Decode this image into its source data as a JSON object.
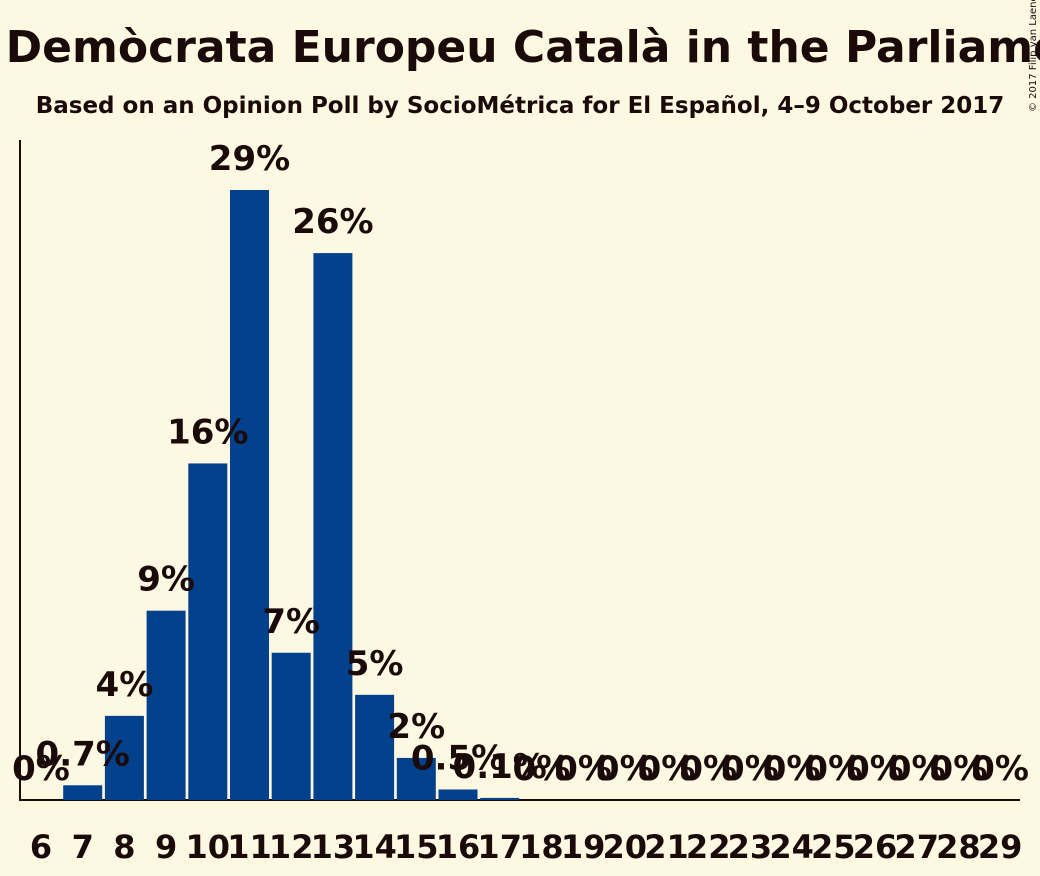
{
  "chart_data": {
    "type": "bar",
    "title": "Seats for Partit Demòcrata Europeu Català in the Parliament of Catalonia",
    "subtitle": "Based on an Opinion Poll by SocioMétrica for El Español, 4–9 October 2017",
    "copyright": "© 2017 Filip van Laenen",
    "categories": [
      "6",
      "7",
      "8",
      "9",
      "10",
      "11",
      "12",
      "13",
      "14",
      "15",
      "16",
      "17",
      "18",
      "19",
      "20",
      "21",
      "22",
      "23",
      "24",
      "25",
      "26",
      "27",
      "28",
      "29"
    ],
    "values": [
      0,
      0.7,
      4,
      9,
      16,
      29,
      7,
      26,
      5,
      2,
      0.5,
      0.1,
      0,
      0,
      0,
      0,
      0,
      0,
      0,
      0,
      0,
      0,
      0,
      0
    ],
    "labels": [
      "0%",
      "0.7%",
      "4%",
      "9%",
      "16%",
      "29%",
      "7%",
      "26%",
      "5%",
      "2%",
      "0.5%",
      "0.1%",
      "0%",
      "0%",
      "0%",
      "0%",
      "0%",
      "0%",
      "0%",
      "0%",
      "0%",
      "0%",
      "0%",
      "0%"
    ],
    "ylim": [
      0,
      29
    ],
    "xlabel": "",
    "ylabel": "",
    "bar_color": "#04418c",
    "background": "#fdf8e1"
  }
}
